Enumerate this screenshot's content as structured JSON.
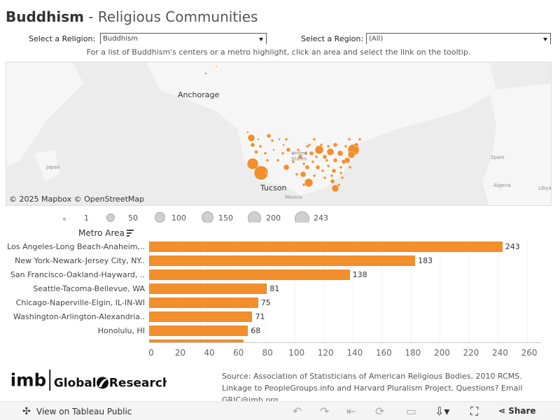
{
  "header": {
    "title_bold": "Buddhism",
    "title_rest": " - Religious Communities"
  },
  "filters": {
    "religion_label": "Select  a Religion:",
    "religion_value": "Buddhism",
    "region_label": "Select a Region:",
    "region_value": "(All)"
  },
  "hint": "For a list of Buddhism's centers or a metro highlight, click an area and select the link on the tooltip.",
  "map": {
    "labels": {
      "anchorage": "Anchorage",
      "tucson": "Tucson"
    },
    "small_labels": {
      "japan": "Japan",
      "united_states": "United States",
      "mexico": "Mexico",
      "spain": "Spain",
      "algeria": "Algeria",
      "libya": "Libya"
    },
    "attribution": "© 2025 Mapbox  © OpenStreetMap",
    "marker_color": "#f28e2b"
  },
  "legend": {
    "items": [
      "1",
      "50",
      "100",
      "150",
      "200",
      "243"
    ]
  },
  "bar_chart": {
    "header": "Metro Area",
    "sort_icon": "sort-descending-icon"
  },
  "chart_data": {
    "type": "bar",
    "orientation": "horizontal",
    "xlabel": "",
    "ylabel": "Metro Area",
    "xlim": [
      0,
      260
    ],
    "xticks": [
      0,
      20,
      40,
      60,
      80,
      100,
      120,
      140,
      160,
      180,
      200,
      220,
      240,
      260
    ],
    "categories": [
      "Los Angeles-Long Beach-Anaheim,..",
      "New York-Newark-Jersey City, NY..",
      "San Francisco-Oakland-Hayward, ..",
      "Seattle-Tacoma-Bellevue, WA",
      "Chicago-Naperville-Elgin, IL-IN-WI",
      "Washington-Arlington-Alexandria..",
      "Honolulu, HI",
      ""
    ],
    "values": [
      243,
      183,
      138,
      81,
      75,
      71,
      68,
      65
    ],
    "bar_color": "#f28e2b"
  },
  "logo": {
    "brand": "imb",
    "product_a": "Global",
    "product_b": "Research"
  },
  "source": "Source: Association of Statisticians of American Religious Bodies, 2010 RCMS. Linkage to PeopleGroups.info and Harvard Pluralism Project. Questions? Email GRIC@imb.org.",
  "footer": {
    "view_label": "View on Tableau Public",
    "share_label": "Share"
  }
}
